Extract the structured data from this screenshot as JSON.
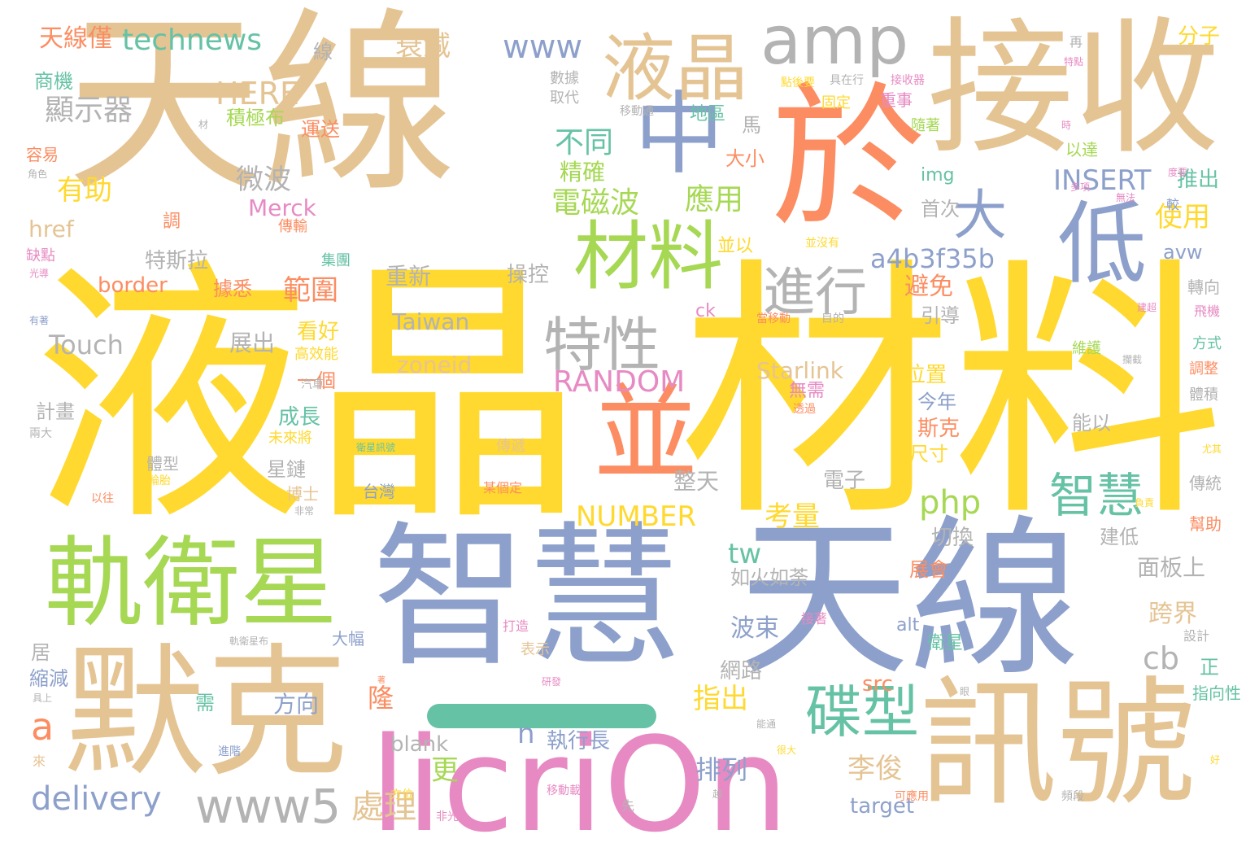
{
  "colors": {
    "tan": "#e5c494",
    "yellow": "#ffd92f",
    "blue": "#8da0cb",
    "orange": "#fc8d62",
    "green": "#a6d854",
    "teal": "#66c2a5",
    "pink": "#e78ac3",
    "gray": "#b3b3b3"
  },
  "words": [
    "天線",
    "液晶",
    "材料",
    "接收",
    "於",
    "中",
    "智慧",
    "天線",
    "默克",
    "licriOn",
    "訊號",
    "軌衛星",
    "低",
    "amp",
    "液晶",
    "材料",
    "並",
    "特性",
    "進行",
    "大",
    "碟型",
    "智慧",
    "www5",
    "technews",
    "天線僅",
    "www",
    "衰減",
    "分子",
    "HERE",
    "顯示器",
    "商機",
    "積極布",
    "運送",
    "地區",
    "馬",
    "重事",
    "固定",
    "不同",
    "精確",
    "電磁波",
    "應用",
    "INSERT",
    "推出",
    "微波",
    "有助",
    "Merck",
    "傳輸",
    "調",
    "href",
    "img",
    "首次",
    "使用",
    "以達",
    "a4b3f35b",
    "avw",
    "特斯拉",
    "border",
    "據悉",
    "範圍",
    "重新",
    "操控",
    "避免",
    "引導",
    "轉向",
    "Taiwan",
    "Touch",
    "展出",
    "看好",
    "高效能",
    "zoneid",
    "RANDOM",
    "Starlink",
    "無需",
    "位置",
    "一個",
    "今年",
    "能以",
    "計畫",
    "成長",
    "未來將",
    "斯克",
    "尺寸",
    "星鏈",
    "體型",
    "博士",
    "整天",
    "電子",
    "NUMBER",
    "考量",
    "php",
    "tw",
    "切換",
    "建低",
    "如火如荼",
    "面板上",
    "跨界",
    "波束",
    "網路",
    "指出",
    "更",
    "隆",
    "方向",
    "李俊",
    "cb",
    "a",
    "delivery",
    "處理",
    "blank",
    "n",
    "執行長",
    "排列",
    "target",
    "src",
    "alt",
    "衛星",
    "正",
    "指向性",
    "展會",
    "大幅",
    "表示",
    "居",
    "縮減",
    "需",
    "容易",
    "缺點",
    "台灣",
    "某個定",
    "傳遞",
    "衛星訊號",
    "線",
    "再",
    "數據",
    "取代",
    "移動通",
    "點後要",
    "具在行",
    "接收器",
    "隨著",
    "大小",
    "並以",
    "ck",
    "當移動",
    "目的",
    "接著",
    "軌衛星布",
    "可應用",
    "移動載",
    "方位",
    "設計",
    "幫助",
    "傳統",
    "方式",
    "調整",
    "體積",
    "維護",
    "飛機",
    "建超",
    "攔截",
    "打造",
    "研發",
    "來",
    "進階",
    "角色",
    "光導",
    "汽車",
    "兩大",
    "輪胎",
    "以往",
    "非常",
    "較",
    "多項",
    "無法",
    "度要",
    "並沒有",
    "集團",
    "透過",
    "負責",
    "尤其",
    "好",
    "先",
    "非光",
    "越",
    "能通",
    "很大",
    "頻段",
    "眼",
    "時",
    "特點",
    "有著",
    "材",
    "具上",
    "著"
  ]
}
